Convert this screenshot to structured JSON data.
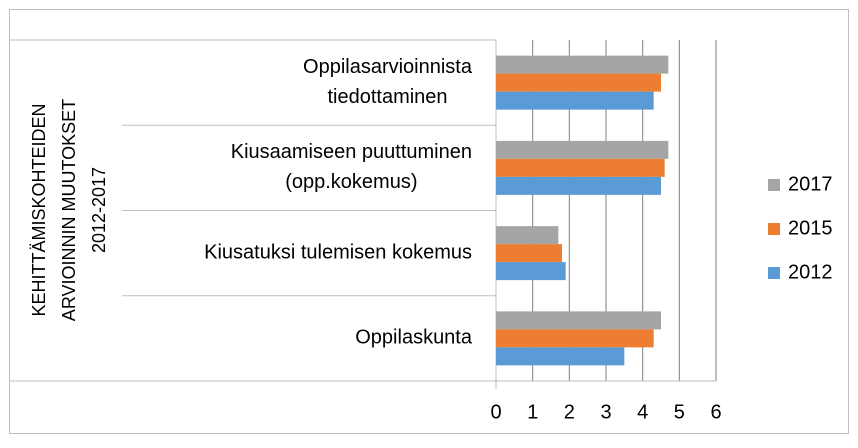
{
  "chart_data": {
    "type": "bar",
    "orientation": "horizontal",
    "ylabel": [
      "KEHITTÄMISKOHTEIDEN",
      "ARVIOINNIN MUUTOKSET",
      "2012-2017"
    ],
    "categories": [
      [
        "Oppilasarvioinnista",
        "tiedottaminen"
      ],
      [
        "Kiusaamiseen puuttuminen",
        "(opp.kokemus)"
      ],
      [
        "Kiusatuksi tulemisen kokemus"
      ],
      [
        "Oppilaskunta"
      ]
    ],
    "series": [
      {
        "name": "2017",
        "color": "#a5a5a5",
        "values": [
          4.7,
          4.7,
          1.7,
          4.5
        ]
      },
      {
        "name": "2015",
        "color": "#ed7d31",
        "values": [
          4.5,
          4.6,
          1.8,
          4.3
        ]
      },
      {
        "name": "2012",
        "color": "#5b9bd5",
        "values": [
          4.3,
          4.5,
          1.9,
          3.5
        ]
      }
    ],
    "xlim": [
      0,
      6
    ],
    "xticks": [
      0,
      1,
      2,
      3,
      4,
      5,
      6
    ],
    "grid": true,
    "legend": "right"
  }
}
